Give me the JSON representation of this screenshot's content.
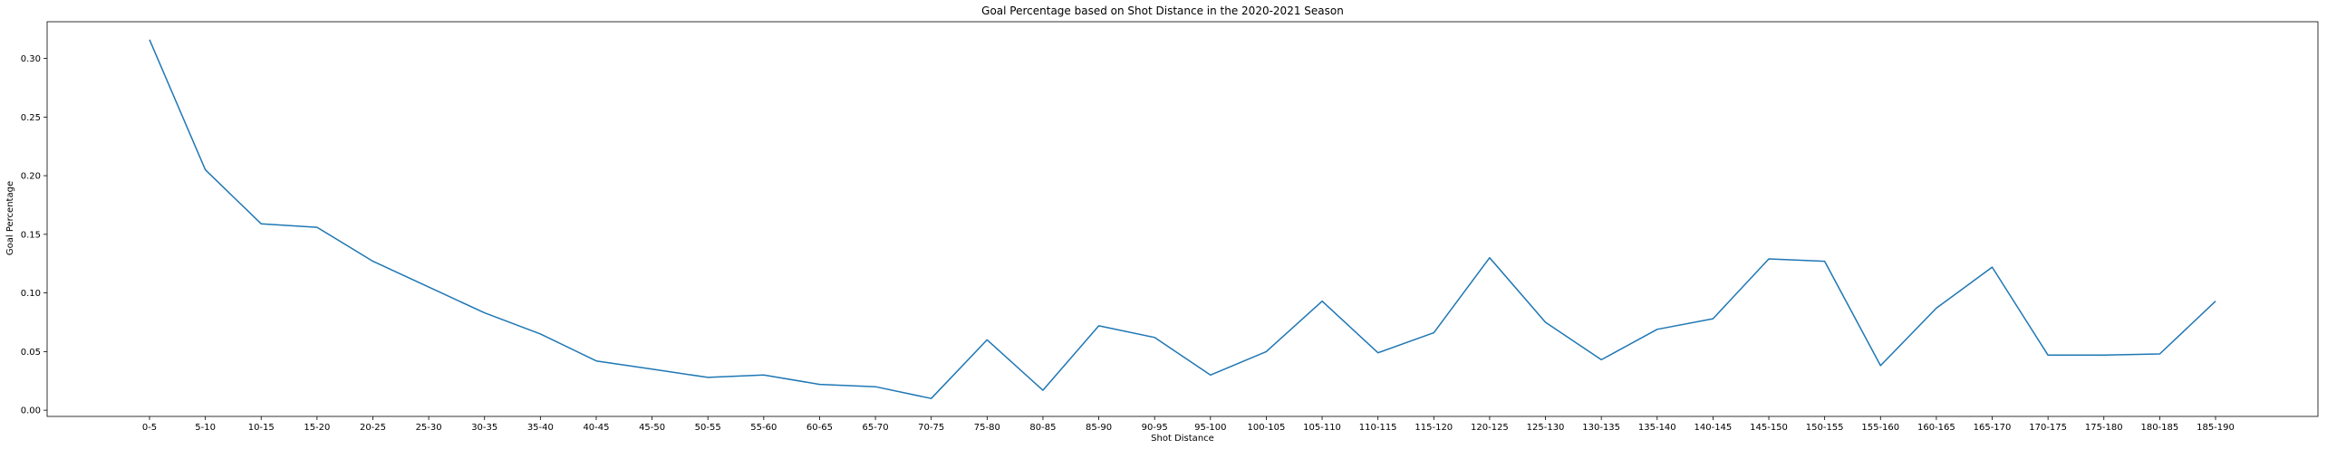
{
  "chart_data": {
    "type": "line",
    "title": "Goal Percentage based on Shot Distance in the 2020-2021 Season",
    "xlabel": "Shot Distance",
    "ylabel": "Goal Percentage",
    "categories": [
      "0-5",
      "5-10",
      "10-15",
      "15-20",
      "20-25",
      "25-30",
      "30-35",
      "35-40",
      "40-45",
      "45-50",
      "50-55",
      "55-60",
      "60-65",
      "65-70",
      "70-75",
      "75-80",
      "80-85",
      "85-90",
      "90-95",
      "95-100",
      "100-105",
      "105-110",
      "110-115",
      "115-120",
      "120-125",
      "125-130",
      "130-135",
      "135-140",
      "140-145",
      "145-150",
      "150-155",
      "155-160",
      "160-165",
      "165-170",
      "170-175",
      "175-180",
      "180-185",
      "185-190"
    ],
    "series": [
      {
        "values": [
          0.316,
          0.205,
          0.159,
          0.156,
          0.127,
          0.105,
          0.083,
          0.065,
          0.042,
          0.035,
          0.028,
          0.03,
          0.022,
          0.02,
          0.01,
          0.06,
          0.017,
          0.072,
          0.062,
          0.03,
          0.05,
          0.093,
          0.049,
          0.066,
          0.13,
          0.075,
          0.043,
          0.069,
          0.078,
          0.129,
          0.127,
          0.038,
          0.087,
          0.122,
          0.047,
          0.047,
          0.048,
          0.093
        ],
        "color": "#1f77b4"
      }
    ],
    "yticks": [
      "0.00",
      "0.05",
      "0.10",
      "0.15",
      "0.20",
      "0.25",
      "0.30"
    ],
    "ylim": [
      -0.0053,
      0.3313
    ],
    "grid": false
  }
}
